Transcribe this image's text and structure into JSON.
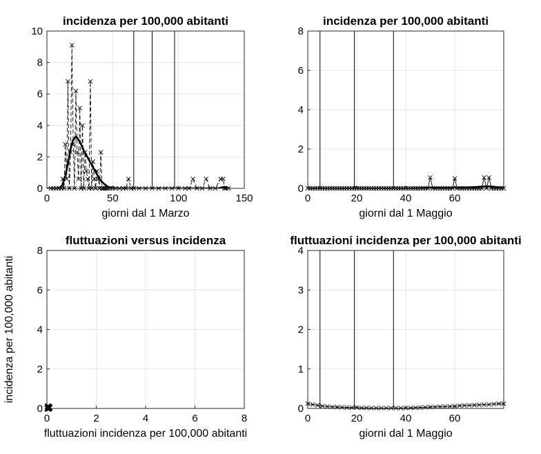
{
  "chart_data": [
    {
      "id": "p1",
      "type": "line",
      "title": "incidenza per 100,000 abitanti",
      "xlabel": "giorni dal 1 Marzo",
      "ylabel": "",
      "xlim": [
        0,
        150
      ],
      "ylim": [
        0,
        10
      ],
      "xticks": [
        0,
        50,
        100,
        150
      ],
      "yticks": [
        0,
        2,
        4,
        6,
        8,
        10
      ],
      "grid": true,
      "vlines": [
        66,
        80,
        97
      ],
      "series": [
        {
          "style": "dashed-x",
          "x": [
            3,
            5,
            7,
            9,
            11,
            12,
            13,
            14,
            15,
            16,
            17,
            18,
            19,
            20,
            21,
            22,
            23,
            24,
            25,
            26,
            27,
            28,
            29,
            30,
            31,
            32,
            33,
            34,
            35,
            36,
            37,
            38,
            39,
            40,
            41,
            42,
            43,
            44,
            45,
            46,
            48,
            50,
            52,
            55,
            58,
            60,
            62,
            64,
            66,
            70,
            75,
            80,
            85,
            90,
            95,
            100,
            105,
            108,
            111,
            114,
            118,
            121,
            124,
            128,
            132,
            134,
            135,
            136,
            138
          ],
          "y": [
            0,
            0,
            0,
            0,
            0,
            0.6,
            0,
            2.8,
            0.6,
            6.8,
            0,
            2.3,
            9.1,
            2.8,
            0,
            6.2,
            2.3,
            0.6,
            5.1,
            0,
            4,
            0,
            2.3,
            1.1,
            0.6,
            0,
            6.8,
            0,
            1.7,
            0.6,
            0,
            1.1,
            0.6,
            0,
            2.3,
            0,
            0,
            0,
            0,
            0,
            0,
            0,
            0,
            0,
            0,
            0,
            0.6,
            0,
            0,
            0,
            0,
            0,
            0,
            0,
            0,
            0,
            0,
            0,
            0.6,
            0,
            0,
            0.6,
            0,
            0,
            0.6,
            0.6,
            0,
            0,
            0
          ]
        },
        {
          "style": "bold",
          "x": [
            0,
            5,
            8,
            10,
            12,
            14,
            16,
            18,
            20,
            22,
            24,
            26,
            28,
            30,
            32,
            34,
            36,
            38,
            40,
            42,
            44,
            46,
            48,
            50,
            55,
            60,
            65,
            70,
            80,
            90,
            100,
            110,
            120,
            130,
            135,
            138
          ],
          "y": [
            0,
            0,
            0,
            0.05,
            0.25,
            0.8,
            1.6,
            2.5,
            3.1,
            3.3,
            3.1,
            2.8,
            2.4,
            2.1,
            1.8,
            1.5,
            1.2,
            0.9,
            0.6,
            0.4,
            0.25,
            0.12,
            0.05,
            0,
            0,
            0,
            0,
            0,
            0,
            0,
            0,
            0,
            0,
            0,
            0.1,
            0
          ]
        }
      ]
    },
    {
      "id": "p2",
      "type": "line",
      "title": "incidenza per 100,000 abitanti",
      "xlabel": "giorni dal 1 Maggio",
      "ylabel": "",
      "xlim": [
        0,
        80
      ],
      "ylim": [
        0,
        8
      ],
      "xticks": [
        0,
        20,
        40,
        60
      ],
      "yticks": [
        0,
        2,
        4,
        6,
        8
      ],
      "grid": true,
      "vlines": [
        5,
        19,
        35
      ],
      "series": [
        {
          "style": "solid-x",
          "x": [
            0,
            1,
            2,
            3,
            4,
            5,
            6,
            7,
            8,
            9,
            10,
            11,
            12,
            13,
            14,
            15,
            16,
            17,
            18,
            19,
            20,
            21,
            22,
            23,
            24,
            25,
            26,
            27,
            28,
            29,
            30,
            31,
            32,
            33,
            34,
            35,
            36,
            37,
            38,
            39,
            40,
            41,
            42,
            43,
            44,
            45,
            46,
            47,
            48,
            49,
            50,
            51,
            52,
            53,
            54,
            55,
            56,
            57,
            58,
            59,
            60,
            61,
            62,
            63,
            64,
            65,
            66,
            67,
            68,
            69,
            70,
            71,
            72,
            73,
            74,
            75,
            76,
            77,
            78,
            79,
            80
          ],
          "y": [
            0,
            0,
            0,
            0,
            0,
            0,
            0,
            0,
            0,
            0,
            0,
            0,
            0,
            0,
            0,
            0,
            0,
            0,
            0,
            0,
            0,
            0,
            0,
            0,
            0,
            0,
            0,
            0,
            0,
            0,
            0,
            0,
            0,
            0,
            0,
            0,
            0,
            0,
            0,
            0,
            0,
            0,
            0,
            0,
            0,
            0,
            0,
            0,
            0,
            0,
            0.55,
            0,
            0,
            0,
            0,
            0,
            0,
            0,
            0,
            0,
            0.5,
            0,
            0,
            0,
            0,
            0,
            0,
            0,
            0,
            0,
            0,
            0,
            0.55,
            0,
            0.55,
            0,
            0,
            0,
            0,
            0,
            0
          ]
        },
        {
          "style": "bold",
          "x": [
            0,
            20,
            40,
            45,
            50,
            55,
            60,
            65,
            68,
            70,
            72,
            74,
            76,
            78,
            80
          ],
          "y": [
            0,
            0,
            0,
            0.01,
            0.03,
            0.02,
            0.03,
            0.04,
            0.06,
            0.08,
            0.1,
            0.1,
            0.08,
            0.05,
            0.03
          ]
        }
      ]
    },
    {
      "id": "p3",
      "type": "scatter",
      "title": "fluttuazioni versus incidenza",
      "xlabel": "fluttuazioni incidenza per 100,000 abitanti",
      "ylabel": "incidenza per 100,000 abitanti",
      "xlim": [
        0,
        8
      ],
      "ylim": [
        0,
        8
      ],
      "xticks": [
        0,
        2,
        4,
        6,
        8
      ],
      "yticks": [
        0,
        2,
        4,
        6,
        8
      ],
      "grid": true,
      "vlines": [],
      "series": [
        {
          "style": "markers-x",
          "x": [
            0.03,
            0.05,
            0.08,
            0.1,
            0.06,
            0.04,
            0.09,
            0.07
          ],
          "y": [
            0,
            0.02,
            0,
            0.05,
            0.08,
            0.1,
            0.03,
            0.06
          ]
        }
      ]
    },
    {
      "id": "p4",
      "type": "line",
      "title": "fluttuazioni incidenza per 100,000 abitanti",
      "xlabel": "giorni dal 1 Maggio",
      "ylabel": "",
      "xlim": [
        0,
        80
      ],
      "ylim": [
        0,
        4
      ],
      "xticks": [
        0,
        20,
        40,
        60
      ],
      "yticks": [
        0,
        1,
        2,
        3,
        4
      ],
      "grid": true,
      "vlines": [
        5,
        19,
        35
      ],
      "series": [
        {
          "style": "solid-x",
          "x": [
            0,
            2,
            4,
            6,
            8,
            10,
            12,
            14,
            16,
            18,
            20,
            22,
            24,
            26,
            28,
            30,
            32,
            34,
            36,
            38,
            40,
            42,
            44,
            46,
            48,
            50,
            52,
            54,
            56,
            58,
            60,
            62,
            64,
            66,
            68,
            70,
            72,
            74,
            76,
            78,
            80
          ],
          "y": [
            0.12,
            0.1,
            0.08,
            0.06,
            0.05,
            0.04,
            0.035,
            0.03,
            0.025,
            0.02,
            0.02,
            0.015,
            0.015,
            0.01,
            0.01,
            0.01,
            0.01,
            0.01,
            0.01,
            0.01,
            0.01,
            0.015,
            0.02,
            0.025,
            0.03,
            0.035,
            0.04,
            0.045,
            0.05,
            0.05,
            0.06,
            0.07,
            0.075,
            0.08,
            0.085,
            0.09,
            0.095,
            0.1,
            0.11,
            0.12,
            0.12
          ]
        }
      ]
    }
  ]
}
